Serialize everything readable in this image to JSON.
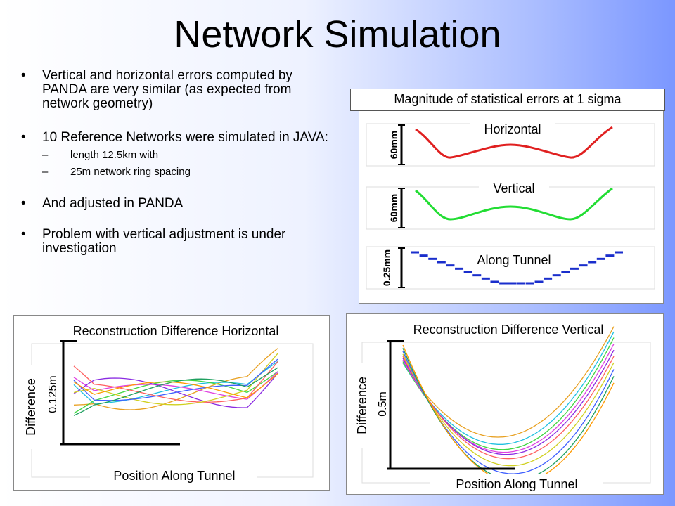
{
  "title": "Network Simulation",
  "bullets": {
    "b1": "Vertical and horizontal errors computed by PANDA are very similar (as expected from network geometry)",
    "b2": "10 Reference Networks were simulated in JAVA:",
    "b2_sub1": "length 12.5km with",
    "b2_sub2": "25m network ring spacing",
    "b3": "And adjusted in PANDA",
    "b4": "Problem with vertical adjustment is under investigation"
  },
  "top_right": {
    "caption": "Magnitude of statistical errors at 1 sigma",
    "horizontal": {
      "label": "Horizontal",
      "scale": "60mm",
      "color": "#e02020"
    },
    "vertical": {
      "label": "Vertical",
      "scale": "60mm",
      "color": "#22dd33"
    },
    "along": {
      "label": "Along Tunnel",
      "scale": "0.25mm",
      "color": "#1a2ecc"
    }
  },
  "bottom_left": {
    "title": "Reconstruction Difference Horizontal",
    "ylabel": "Difference",
    "scale": "0.125m",
    "xlabel": "Position Along Tunnel"
  },
  "bottom_right": {
    "title": "Reconstruction Difference Vertical",
    "ylabel": "Difference",
    "scale": "0.5m",
    "xlabel": "Position Along Tunnel"
  },
  "series_colors": [
    "#e8a020",
    "#20c0e0",
    "#3fd63f",
    "#e040e0",
    "#8a2be2",
    "#ff6060",
    "#d0d020",
    "#4060ff",
    "#20a060",
    "#ff9900"
  ]
}
